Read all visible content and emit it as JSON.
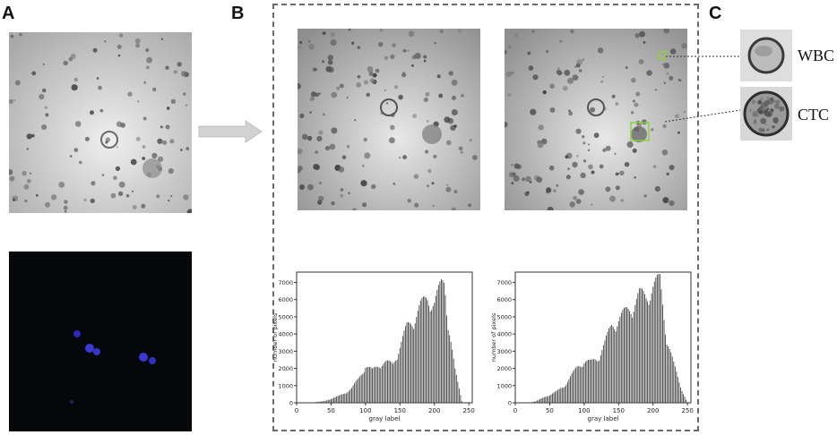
{
  "panels": {
    "a": "A",
    "b": "B",
    "c": "C"
  },
  "cell_labels": {
    "wbc": "WBC",
    "ctc": "CTC"
  },
  "chart_data": [
    {
      "type": "bar",
      "xlabel": "gray label",
      "ylabel": "number of pixels",
      "xlim": [
        0,
        255
      ],
      "ylim": [
        0,
        7600
      ],
      "xticks": [
        0,
        50,
        100,
        150,
        200,
        250
      ],
      "yticks": [
        0,
        1000,
        2000,
        3000,
        4000,
        5000,
        6000,
        7000
      ],
      "x": [
        20,
        30,
        40,
        50,
        60,
        70,
        80,
        90,
        100,
        110,
        120,
        130,
        140,
        150,
        160,
        170,
        180,
        190,
        200,
        210,
        215,
        220,
        230,
        240
      ],
      "values": [
        0,
        50,
        100,
        250,
        400,
        600,
        900,
        1500,
        2300,
        2000,
        2400,
        2500,
        2400,
        3500,
        4700,
        5200,
        6000,
        6500,
        6200,
        7300,
        7600,
        5000,
        2000,
        100
      ]
    },
    {
      "type": "bar",
      "xlabel": "gray label",
      "ylabel": "number of pixels",
      "xlim": [
        0,
        255
      ],
      "ylim": [
        0,
        7600
      ],
      "xticks": [
        0,
        50,
        100,
        150,
        200,
        250
      ],
      "yticks": [
        0,
        1000,
        2000,
        3000,
        4000,
        5000,
        6000,
        7000
      ],
      "x": [
        20,
        30,
        40,
        50,
        60,
        70,
        80,
        90,
        100,
        110,
        120,
        130,
        140,
        150,
        160,
        170,
        180,
        190,
        200,
        210,
        220,
        230,
        240,
        250
      ],
      "values": [
        0,
        100,
        300,
        500,
        700,
        1000,
        1600,
        2200,
        2600,
        2500,
        2800,
        3700,
        4800,
        5200,
        5600,
        6000,
        6700,
        6600,
        7200,
        7600,
        4000,
        2400,
        1000,
        0
      ]
    }
  ]
}
